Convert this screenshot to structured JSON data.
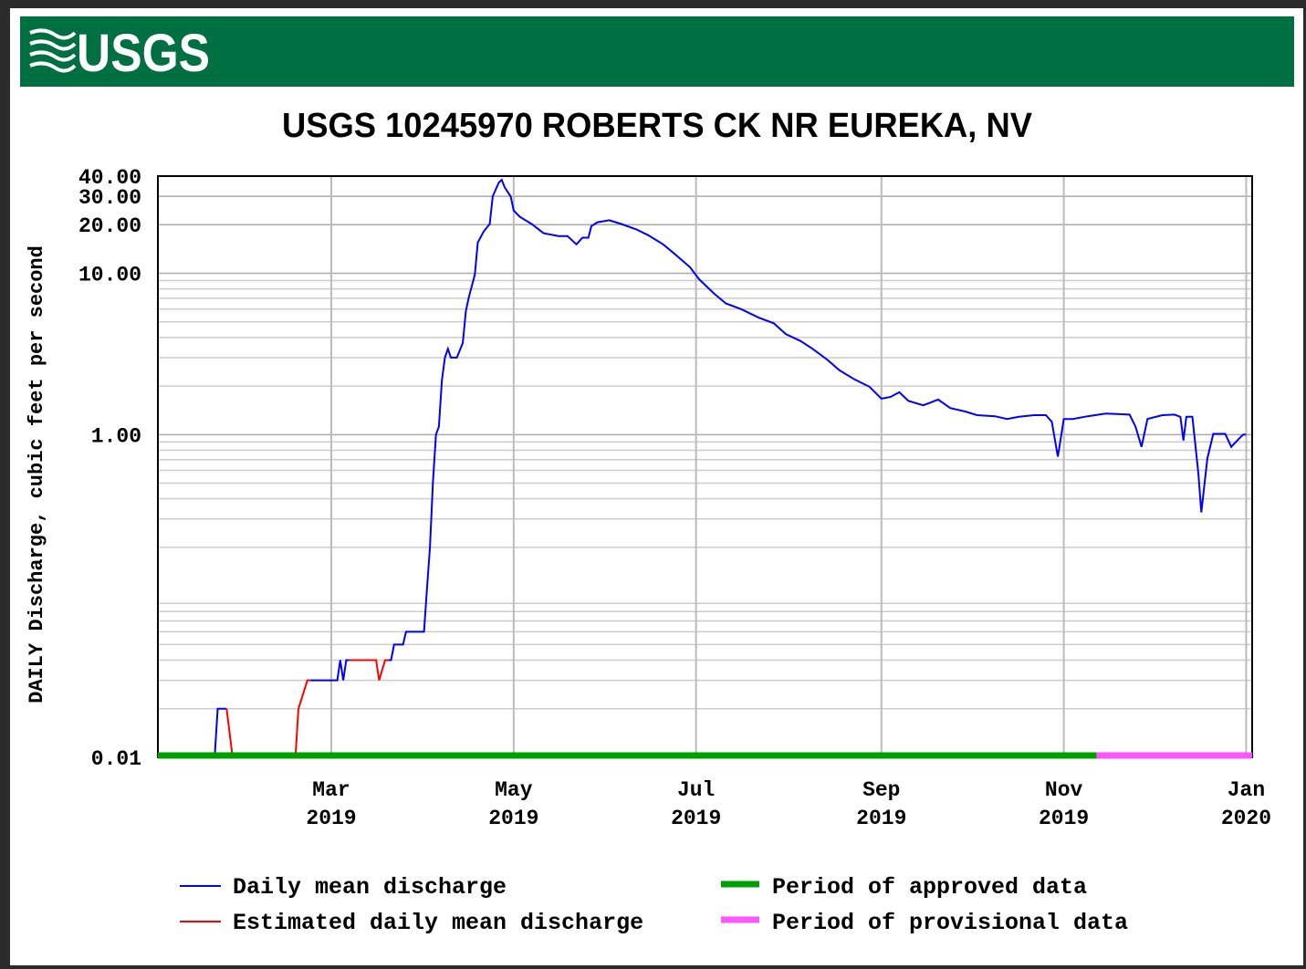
{
  "header": {
    "logo": "USGS"
  },
  "chart_data": {
    "type": "line",
    "title": "USGS 10245970 ROBERTS CK NR EUREKA, NV",
    "ylabel": "DAILY Discharge, cubic feet per second",
    "y_scale": "log",
    "grid": true,
    "ylim": [
      0.01,
      40
    ],
    "yticks": [
      0.01,
      {
        "value": 1,
        "label": "1.00"
      },
      {
        "value": 10,
        "label": "10.00"
      },
      {
        "value": 20,
        "label": "20.00"
      },
      {
        "value": 30,
        "label": "30.00"
      },
      {
        "value": 40,
        "label": "40.00"
      }
    ],
    "minor_yticks": [
      0.02,
      0.03,
      0.04,
      0.05,
      0.06,
      0.07,
      0.08,
      0.09,
      0.2,
      0.3,
      0.4,
      0.5,
      0.6,
      0.7,
      0.8,
      0.9,
      2,
      3,
      4,
      5,
      6,
      7,
      8,
      9
    ],
    "xlim": [
      "2019-01-02",
      "2020-01-03"
    ],
    "xticks": [
      {
        "value": "2019-03-01",
        "label": [
          "Mar",
          "2019"
        ]
      },
      {
        "value": "2019-05-01",
        "label": [
          "May",
          "2019"
        ]
      },
      {
        "value": "2019-07-01",
        "label": [
          "Jul",
          "2019"
        ]
      },
      {
        "value": "2019-09-01",
        "label": [
          "Sep",
          "2019"
        ]
      },
      {
        "value": "2019-11-01",
        "label": [
          "Nov",
          "2019"
        ]
      },
      {
        "value": "2020-01-01",
        "label": [
          "Jan",
          "2020"
        ]
      }
    ],
    "series": [
      {
        "name": "Daily mean discharge",
        "color": "#0000ff",
        "x": [
          "2019-01-02",
          "2019-01-21",
          "2019-01-22",
          "2019-01-25",
          "2019-01-26",
          "2019-01-27",
          "2019-02-17",
          "2019-02-19",
          "2019-02-22",
          "2019-03-03",
          "2019-03-04",
          "2019-03-05",
          "2019-03-06",
          "2019-03-07",
          "2019-03-12",
          "2019-03-20",
          "2019-03-21",
          "2019-03-22",
          "2019-03-25",
          "2019-03-26",
          "2019-04-01",
          "2019-04-02",
          "2019-04-03",
          "2019-04-04",
          "2019-04-05",
          "2019-04-06",
          "2019-04-07",
          "2019-04-08",
          "2019-04-09",
          "2019-04-10",
          "2019-04-12",
          "2019-04-14",
          "2019-04-15",
          "2019-04-16",
          "2019-04-18",
          "2019-04-19",
          "2019-04-21",
          "2019-04-23",
          "2019-04-24",
          "2019-04-26",
          "2019-04-27",
          "2019-04-28",
          "2019-04-30",
          "2019-05-01",
          "2019-05-03",
          "2019-05-07",
          "2019-05-11",
          "2019-05-16",
          "2019-05-19",
          "2019-05-22",
          "2019-05-24",
          "2019-05-26",
          "2019-05-27",
          "2019-05-29",
          "2019-06-02",
          "2019-06-06",
          "2019-06-11",
          "2019-06-15",
          "2019-06-20",
          "2019-06-24",
          "2019-06-29",
          "2019-07-02",
          "2019-07-07",
          "2019-07-11",
          "2019-07-16",
          "2019-07-22",
          "2019-07-27",
          "2019-07-31",
          "2019-08-05",
          "2019-08-09",
          "2019-08-14",
          "2019-08-18",
          "2019-08-23",
          "2019-08-28",
          "2019-09-01",
          "2019-09-04",
          "2019-09-07",
          "2019-09-10",
          "2019-09-15",
          "2019-09-20",
          "2019-09-24",
          "2019-09-29",
          "2019-10-03",
          "2019-10-09",
          "2019-10-13",
          "2019-10-17",
          "2019-10-22",
          "2019-10-26",
          "2019-10-28",
          "2019-10-30",
          "2019-11-01",
          "2019-11-04",
          "2019-11-09",
          "2019-11-15",
          "2019-11-23",
          "2019-11-25",
          "2019-11-27",
          "2019-11-29",
          "2019-12-04",
          "2019-12-08",
          "2019-12-10",
          "2019-12-11",
          "2019-12-12",
          "2019-12-14",
          "2019-12-16",
          "2019-12-17",
          "2019-12-19",
          "2019-12-21",
          "2019-12-25",
          "2019-12-27",
          "2019-12-30",
          "2019-12-31",
          "2020-01-01"
        ],
        "values": [
          0.01,
          0.01,
          0.02,
          0.02,
          null,
          0.01,
          0.01,
          null,
          0.03,
          0.03,
          0.04,
          0.03,
          0.04,
          0.04,
          null,
          0.04,
          0.04,
          0.05,
          0.05,
          0.06,
          0.06,
          0.11,
          0.2,
          0.51,
          1.0,
          1.12,
          2.17,
          3.0,
          3.4,
          3.0,
          3.0,
          3.7,
          5.8,
          7.1,
          9.8,
          15.5,
          18.2,
          20.2,
          30,
          36.4,
          37.9,
          34.1,
          29.9,
          24.5,
          22.4,
          20.2,
          17.7,
          17.0,
          17.0,
          15.1,
          16.6,
          16.6,
          19.6,
          20.7,
          21.3,
          20.2,
          18.7,
          17.2,
          15.1,
          13.1,
          10.9,
          9.2,
          7.5,
          6.5,
          6.0,
          5.3,
          4.9,
          4.2,
          3.8,
          3.4,
          2.9,
          2.5,
          2.2,
          1.98,
          1.67,
          1.71,
          1.83,
          1.62,
          1.52,
          1.65,
          1.46,
          1.39,
          1.32,
          1.3,
          1.25,
          1.29,
          1.32,
          1.32,
          1.2,
          0.73,
          1.25,
          1.25,
          1.3,
          1.35,
          1.33,
          1.12,
          0.84,
          1.25,
          1.32,
          1.33,
          1.29,
          0.92,
          1.29,
          1.29,
          0.58,
          0.33,
          0.71,
          1.01,
          1.01,
          0.84,
          0.96,
          1.0,
          1.0
        ]
      },
      {
        "name": "Estimated daily mean discharge",
        "color": "#ff0000",
        "x": [
          "2019-01-25",
          "2019-01-27",
          "2019-02-01",
          "2019-02-17",
          "2019-02-18",
          "2019-02-21",
          "2019-02-22",
          "2019-03-01",
          "2019-03-07",
          "2019-03-16",
          "2019-03-17",
          "2019-03-19",
          "2019-03-20"
        ],
        "values": [
          0.02,
          0.01,
          null,
          0.01,
          0.02,
          0.03,
          0.03,
          null,
          0.04,
          0.04,
          0.03,
          0.04,
          0.04
        ]
      }
    ],
    "periods": [
      {
        "name": "Period of approved data",
        "color": "#00a000",
        "start": "2019-01-02",
        "end": "2019-11-12"
      },
      {
        "name": "Period of provisional data",
        "color": "#ff55ff",
        "start": "2019-11-12",
        "end": "2020-01-03"
      }
    ]
  }
}
